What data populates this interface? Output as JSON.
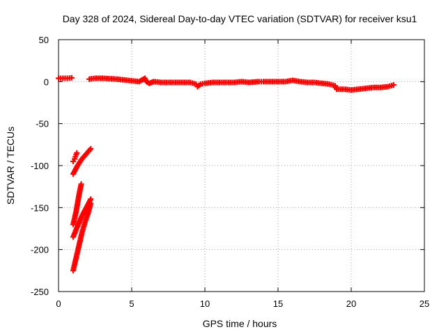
{
  "chart_data": {
    "type": "scatter",
    "title": "Day 328 of 2024, Sidereal Day-to-day VTEC variation (SDTVAR) for receiver ksu1",
    "xlabel": "GPS time / hours",
    "ylabel": "SDTVAR / TECUs",
    "xlim": [
      0,
      25
    ],
    "ylim": [
      -250,
      50
    ],
    "xticks": [
      0,
      5,
      10,
      15,
      20,
      25
    ],
    "yticks": [
      -250,
      -200,
      -150,
      -100,
      -50,
      0,
      50
    ],
    "grid": true,
    "legend": "none",
    "marker_color": "#ff0000",
    "series": [
      {
        "points": [
          [
            0.0,
            4
          ],
          [
            0.3,
            4
          ],
          [
            0.6,
            4
          ],
          [
            0.9,
            4.5
          ],
          [
            2.1,
            3
          ],
          [
            2.5,
            4
          ],
          [
            3.0,
            4
          ],
          [
            3.5,
            3.5
          ],
          [
            4.0,
            3
          ],
          [
            4.5,
            2
          ],
          [
            5.0,
            1
          ],
          [
            5.5,
            0
          ],
          [
            5.9,
            4
          ],
          [
            6.0,
            0
          ],
          [
            6.2,
            -2
          ],
          [
            6.5,
            0
          ],
          [
            7.0,
            -1
          ],
          [
            7.5,
            -1
          ],
          [
            8.0,
            -1
          ],
          [
            8.5,
            -1
          ],
          [
            9.0,
            -1
          ],
          [
            9.4,
            -3
          ],
          [
            9.5,
            -6
          ],
          [
            9.7,
            -3
          ],
          [
            10.0,
            -2
          ],
          [
            10.5,
            -1
          ],
          [
            11.0,
            -1
          ],
          [
            11.5,
            -1
          ],
          [
            12.0,
            -1
          ],
          [
            12.5,
            0
          ],
          [
            13.0,
            -1
          ],
          [
            13.7,
            0
          ],
          [
            14.0,
            0
          ],
          [
            14.5,
            0
          ],
          [
            15.0,
            0
          ],
          [
            15.5,
            0
          ],
          [
            16.0,
            1.5
          ],
          [
            16.5,
            0
          ],
          [
            17.0,
            -1
          ],
          [
            17.5,
            -1
          ],
          [
            18.0,
            -2
          ],
          [
            18.5,
            -3
          ],
          [
            18.9,
            -5
          ],
          [
            19.0,
            -9
          ],
          [
            19.5,
            -9
          ],
          [
            20.0,
            -10
          ],
          [
            20.5,
            -9
          ],
          [
            21.0,
            -8
          ],
          [
            21.5,
            -7
          ],
          [
            22.0,
            -7
          ],
          [
            22.5,
            -6
          ],
          [
            22.9,
            -4
          ]
        ]
      },
      {
        "points": [
          [
            1.0,
            -95
          ],
          [
            1.1,
            -92
          ],
          [
            1.2,
            -87
          ],
          [
            1.25,
            -85
          ],
          [
            1.0,
            -110
          ],
          [
            1.3,
            -100
          ],
          [
            1.6,
            -92
          ],
          [
            1.9,
            -86
          ],
          [
            2.2,
            -80
          ],
          [
            1.0,
            -170
          ],
          [
            1.2,
            -155
          ],
          [
            1.4,
            -135
          ],
          [
            1.55,
            -122
          ],
          [
            1.0,
            -185
          ],
          [
            1.3,
            -172
          ],
          [
            1.6,
            -160
          ],
          [
            1.9,
            -150
          ],
          [
            2.2,
            -140
          ],
          [
            1.0,
            -225
          ],
          [
            1.2,
            -210
          ],
          [
            1.4,
            -195
          ],
          [
            1.6,
            -180
          ],
          [
            1.8,
            -168
          ],
          [
            2.0,
            -158
          ],
          [
            2.2,
            -145
          ]
        ]
      }
    ]
  }
}
